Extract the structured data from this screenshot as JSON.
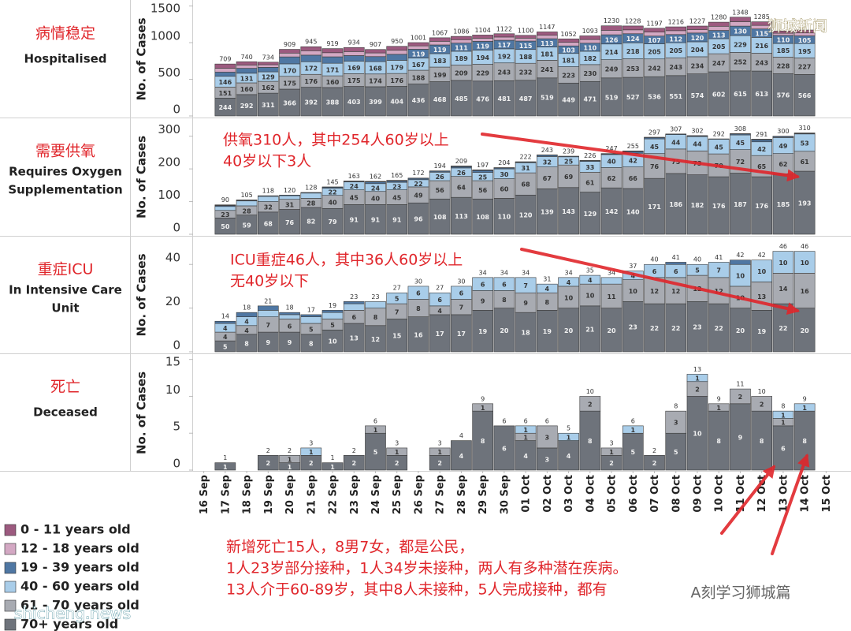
{
  "chart_data": [
    {
      "type": "bar",
      "stacked": true,
      "label_zh": "病情稳定",
      "label_en": [
        "Hospitalised"
      ],
      "ylabel": "No. of Cases",
      "ylim": [
        0,
        1550
      ],
      "yticks": [
        0,
        500,
        1000,
        1500
      ],
      "series": [
        {
          "values": [
            null,
            58,
            45,
            35,
            51,
            55,
            56,
            55,
            47,
            54,
            45,
            48,
            45,
            43,
            45,
            38,
            46,
            48,
            50,
            61,
            53,
            53,
            52,
            47,
            56,
            61,
            49,
            30,
            40,
            null
          ]
        },
        {
          "values": [
            null,
            53,
            45,
            36,
            52,
            60,
            56,
            55,
            50,
            55,
            46,
            50,
            47,
            43,
            44,
            40,
            47,
            48,
            50,
            61,
            53,
            54,
            53,
            48,
            57,
            61,
            49,
            30,
            40,
            null
          ]
        },
        {
          "values": [
            null,
            57,
            67,
            61,
            95,
            90,
            88,
            77,
            69,
            82,
            119,
            119,
            111,
            119,
            117,
            115,
            113,
            103,
            110,
            126,
            124,
            107,
            112,
            120,
            113,
            130,
            115,
            110,
            105,
            null
          ]
        },
        {
          "values": [
            null,
            146,
            131,
            129,
            170,
            172,
            171,
            169,
            168,
            179,
            167,
            183,
            189,
            194,
            192,
            188,
            181,
            181,
            182,
            214,
            218,
            205,
            205,
            204,
            205,
            229,
            216,
            185,
            195,
            null
          ]
        },
        {
          "values": [
            null,
            151,
            160,
            162,
            175,
            176,
            160,
            175,
            174,
            176,
            188,
            199,
            209,
            229,
            243,
            232,
            241,
            223,
            230,
            249,
            253,
            242,
            243,
            234,
            247,
            252,
            243,
            228,
            227,
            null
          ]
        },
        {
          "values": [
            null,
            244,
            292,
            311,
            366,
            392,
            388,
            403,
            399,
            404,
            436,
            468,
            485,
            476,
            481,
            487,
            519,
            449,
            471,
            519,
            527,
            536,
            551,
            574,
            602,
            615,
            613,
            576,
            566,
            null
          ]
        }
      ],
      "totals": [
        null,
        709,
        740,
        734,
        909,
        945,
        919,
        934,
        907,
        950,
        1001,
        1067,
        1086,
        1104,
        1122,
        1100,
        1147,
        1052,
        1093,
        1230,
        1228,
        1197,
        1216,
        1227,
        1280,
        1348,
        1285,
        null,
        null,
        null
      ]
    },
    {
      "type": "bar",
      "stacked": true,
      "label_zh": "需要供氧",
      "label_en": [
        "Requires Oxygen",
        "Supplementation"
      ],
      "ylabel": "No. of Cases",
      "ylim": [
        0,
        350
      ],
      "yticks": [
        0,
        100,
        200,
        300
      ],
      "series": [
        {
          "values": [
            null,
            1,
            0,
            0,
            0,
            0,
            0,
            0,
            1,
            1,
            0,
            0,
            1,
            1,
            0,
            0,
            0,
            0,
            0,
            0,
            1,
            0,
            0,
            0,
            0,
            0,
            1,
            0,
            0,
            null
          ]
        },
        {
          "values": [
            null,
            1,
            1,
            0,
            0,
            0,
            1,
            1,
            1,
            1,
            1,
            1,
            1,
            1,
            1,
            1,
            1,
            0,
            1,
            1,
            1,
            1,
            0,
            1,
            0,
            1,
            1,
            1,
            1,
            null
          ]
        },
        {
          "values": [
            null,
            3,
            2,
            2,
            2,
            2,
            3,
            2,
            5,
            4,
            4,
            3,
            4,
            6,
            3,
            2,
            4,
            2,
            2,
            2,
            5,
            4,
            2,
            2,
            1,
            3,
            6,
            3,
            2,
            null
          ]
        },
        {
          "values": [
            null,
            12,
            15,
            16,
            11,
            16,
            22,
            24,
            24,
            23,
            22,
            26,
            26,
            25,
            30,
            31,
            32,
            25,
            33,
            40,
            42,
            45,
            44,
            44,
            45,
            45,
            42,
            49,
            53,
            null
          ]
        },
        {
          "values": [
            null,
            23,
            28,
            32,
            31,
            28,
            40,
            45,
            40,
            45,
            49,
            56,
            64,
            56,
            60,
            68,
            67,
            69,
            61,
            62,
            66,
            76,
            75,
            73,
            70,
            72,
            65,
            62,
            61,
            null
          ]
        },
        {
          "values": [
            null,
            50,
            59,
            68,
            76,
            82,
            79,
            91,
            91,
            91,
            96,
            108,
            113,
            108,
            110,
            120,
            139,
            143,
            129,
            142,
            140,
            171,
            186,
            182,
            176,
            187,
            176,
            185,
            193,
            null
          ]
        }
      ],
      "totals": [
        null,
        90,
        105,
        118,
        120,
        128,
        145,
        163,
        162,
        165,
        172,
        194,
        209,
        197,
        204,
        222,
        243,
        239,
        226,
        247,
        255,
        297,
        307,
        302,
        292,
        308,
        291,
        300,
        310,
        null
      ],
      "annotation": [
        "供氧310人，其中254人60岁以上",
        "40岁以下3人"
      ]
    },
    {
      "type": "bar",
      "stacked": true,
      "label_zh": "重症ICU",
      "label_en": [
        "In Intensive Care",
        "Unit"
      ],
      "ylabel": "No. of Cases",
      "ylim": [
        0,
        52
      ],
      "yticks": [
        0,
        20,
        40
      ],
      "series": [
        {
          "values": [
            null,
            0,
            0,
            0,
            0,
            0,
            0,
            0,
            0,
            0,
            0,
            0,
            0,
            0,
            0,
            0,
            0,
            0,
            0,
            0,
            0,
            0,
            0,
            0,
            0,
            0,
            0,
            0,
            0,
            null
          ]
        },
        {
          "values": [
            null,
            0,
            0,
            0,
            0,
            0,
            0,
            0,
            0,
            0,
            0,
            0,
            0,
            0,
            0,
            0,
            0,
            0,
            0,
            0,
            0,
            0,
            0,
            0,
            0,
            0,
            0,
            0,
            0,
            null
          ]
        },
        {
          "values": [
            null,
            1,
            2,
            2,
            1,
            1,
            1,
            1,
            0,
            0,
            0,
            0,
            0,
            0,
            0,
            0,
            0,
            0,
            0,
            0,
            0,
            0,
            1,
            0,
            0,
            2,
            0,
            0,
            0,
            null
          ]
        },
        {
          "values": [
            null,
            4,
            4,
            3,
            2,
            3,
            3,
            3,
            3,
            5,
            6,
            6,
            6,
            6,
            6,
            7,
            4,
            4,
            4,
            3,
            4,
            6,
            6,
            5,
            7,
            10,
            10,
            10,
            10,
            null
          ]
        },
        {
          "values": [
            null,
            4,
            4,
            7,
            6,
            5,
            5,
            6,
            8,
            7,
            8,
            4,
            7,
            9,
            8,
            9,
            8,
            10,
            10,
            11,
            10,
            12,
            12,
            12,
            12,
            10,
            13,
            14,
            16,
            null
          ]
        },
        {
          "values": [
            null,
            5,
            8,
            9,
            9,
            8,
            10,
            13,
            12,
            15,
            16,
            17,
            17,
            19,
            20,
            18,
            19,
            20,
            21,
            20,
            23,
            22,
            22,
            23,
            22,
            20,
            19,
            22,
            20,
            null
          ]
        }
      ],
      "totals": [
        null,
        14,
        18,
        21,
        18,
        17,
        19,
        23,
        23,
        27,
        30,
        27,
        30,
        34,
        34,
        34,
        31,
        34,
        35,
        34,
        37,
        40,
        41,
        40,
        41,
        42,
        42,
        46,
        46,
        null
      ],
      "annotation": [
        "ICU重症46人，其中36人60岁以上",
        "无40岁以下"
      ]
    },
    {
      "type": "bar",
      "stacked": true,
      "label_zh": "死亡",
      "label_en": [
        "Deceased"
      ],
      "ylabel": "No. of Cases",
      "ylim": [
        0,
        15.5
      ],
      "yticks": [
        0,
        5,
        10,
        15
      ],
      "categories": [
        "16 Sep",
        "17 Sep",
        "18 Sep",
        "19 Sep",
        "20 Sep",
        "21 Sep",
        "22 Sep",
        "23 Sep",
        "24 Sep",
        "25 Sep",
        "26 Sep",
        "27 Sep",
        "28 Sep",
        "29 Sep",
        "30 Sep",
        "01 Oct",
        "02 Oct",
        "03 Oct",
        "04 Oct",
        "05 Oct",
        "06 Oct",
        "07 Oct",
        "08 Oct",
        "09 Oct",
        "10 Oct",
        "11 Oct",
        "12 Oct",
        "13 Oct",
        "14 Oct",
        "15 Oct"
      ],
      "series": [
        {
          "values": [
            null,
            0,
            0,
            0,
            0,
            0,
            0,
            0,
            0,
            0,
            0,
            0,
            0,
            0,
            0,
            0,
            0,
            0,
            0,
            0,
            0,
            0,
            0,
            0,
            0,
            0,
            0,
            0,
            0,
            null
          ]
        },
        {
          "values": [
            null,
            0,
            0,
            0,
            0,
            0,
            0,
            0,
            0,
            0,
            0,
            0,
            0,
            0,
            0,
            0,
            0,
            0,
            0,
            0,
            0,
            0,
            0,
            0,
            0,
            0,
            0,
            0,
            0,
            null
          ]
        },
        {
          "values": [
            null,
            0,
            0,
            0,
            0,
            0,
            0,
            0,
            0,
            0,
            0,
            0,
            0,
            0,
            0,
            0,
            0,
            0,
            0,
            0,
            0,
            0,
            0,
            0,
            0,
            0,
            0,
            0,
            0,
            null
          ]
        },
        {
          "values": [
            null,
            0,
            0,
            0,
            0,
            1,
            0,
            0,
            0,
            0,
            0,
            0,
            0,
            0,
            0,
            1,
            0,
            1,
            0,
            0,
            1,
            0,
            0,
            1,
            0,
            0,
            0,
            1,
            1,
            null
          ]
        },
        {
          "values": [
            null,
            0,
            0,
            0,
            1,
            0,
            0,
            0,
            1,
            1,
            0,
            1,
            0,
            1,
            0,
            1,
            3,
            0,
            2,
            1,
            0,
            0,
            3,
            2,
            1,
            2,
            2,
            1,
            0,
            null
          ]
        },
        {
          "values": [
            null,
            1,
            0,
            2,
            1,
            2,
            1,
            2,
            5,
            2,
            0,
            2,
            4,
            8,
            6,
            4,
            3,
            4,
            8,
            2,
            5,
            2,
            5,
            10,
            8,
            9,
            8,
            6,
            8,
            null
          ]
        }
      ],
      "totals": [
        null,
        1,
        null,
        2,
        2,
        3,
        1,
        2,
        6,
        3,
        null,
        3,
        4,
        9,
        6,
        6,
        6,
        5,
        10,
        3,
        6,
        2,
        8,
        13,
        9,
        11,
        10,
        8,
        9,
        null
      ],
      "annotation": [
        "新增死亡15人，8男7女，都是公民，",
        "1人23岁部分接种，1人34岁未接种，两人有多种潜在疾病。",
        "13人介于60-89岁，其中8人未接种，5人完成接种，都有"
      ]
    }
  ],
  "legend": [
    {
      "name": "0 - 11 years old",
      "color": "#9c5a7f"
    },
    {
      "name": "12 - 18 years old",
      "color": "#d3a8c3"
    },
    {
      "name": "19 - 39 years old",
      "color": "#4f77a3"
    },
    {
      "name": "40 - 60 years old",
      "color": "#a9cde9"
    },
    {
      "name": "61 - 70 years old",
      "color": "#a8abb2"
    },
    {
      "name": "70+ years old",
      "color": "#6e737b"
    }
  ],
  "watermarks": [
    "狮城新闻",
    "shicheng.news",
    "A刻学习狮城篇"
  ]
}
